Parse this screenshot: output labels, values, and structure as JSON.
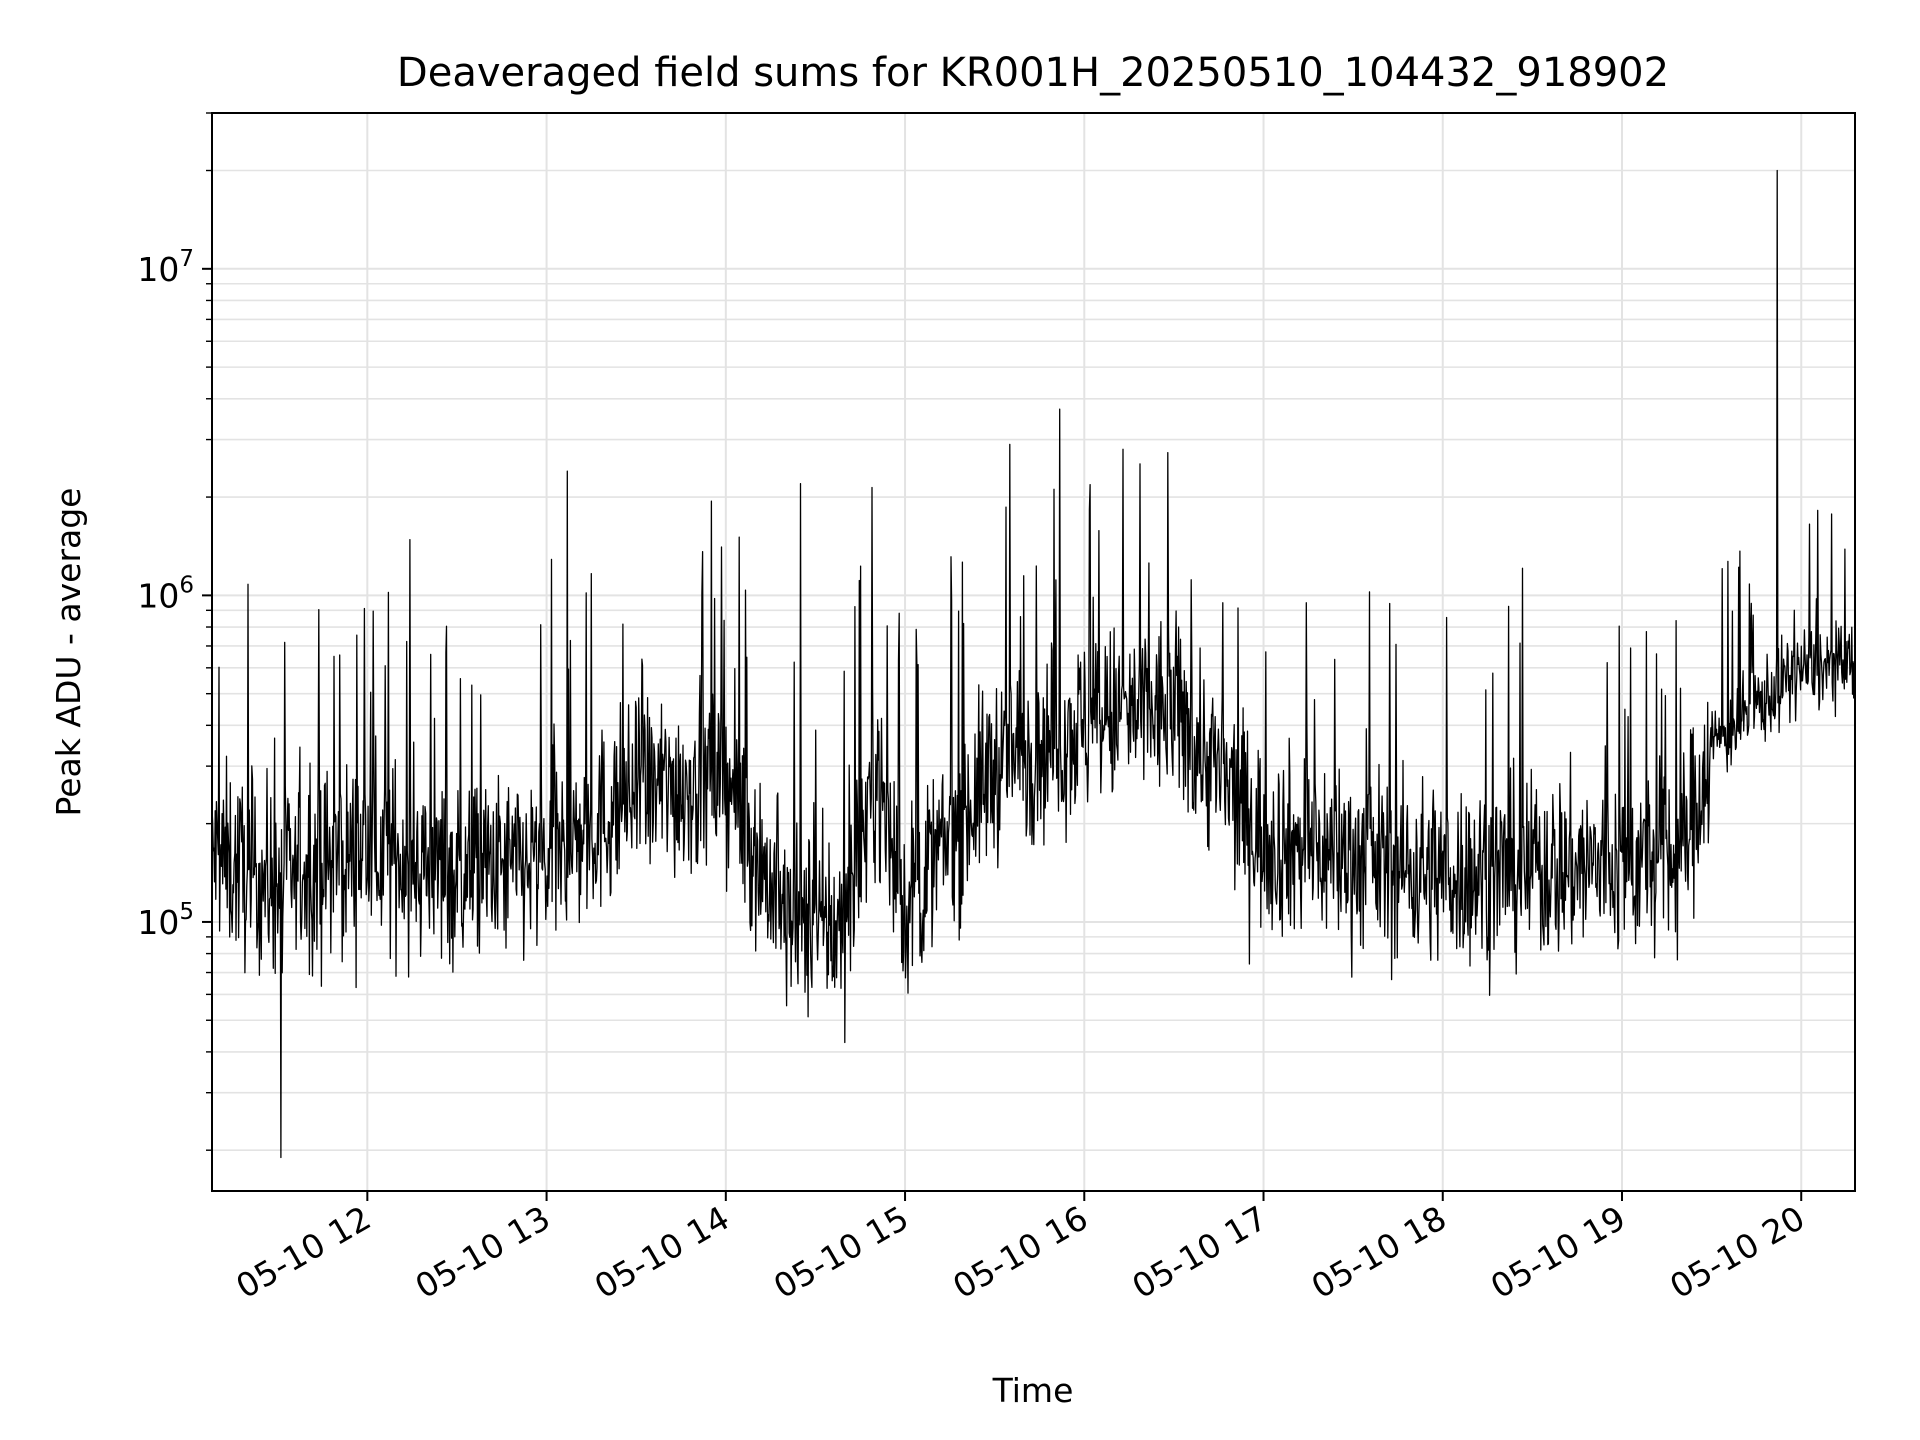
{
  "chart_data": {
    "type": "line",
    "title": "Deaveraged field sums for KR001H_20250510_104432_918902",
    "xlabel": "Time",
    "ylabel": "Peak ADU - average",
    "x_range": [
      "2025-05-10 11:08",
      "2025-05-10 20:18"
    ],
    "x_ticks": [
      {
        "t": "2025-05-10 12:00",
        "label": "05-10 12"
      },
      {
        "t": "2025-05-10 13:00",
        "label": "05-10 13"
      },
      {
        "t": "2025-05-10 14:00",
        "label": "05-10 14"
      },
      {
        "t": "2025-05-10 15:00",
        "label": "05-10 15"
      },
      {
        "t": "2025-05-10 16:00",
        "label": "05-10 16"
      },
      {
        "t": "2025-05-10 17:00",
        "label": "05-10 17"
      },
      {
        "t": "2025-05-10 18:00",
        "label": "05-10 18"
      },
      {
        "t": "2025-05-10 19:00",
        "label": "05-10 19"
      },
      {
        "t": "2025-05-10 20:00",
        "label": "05-10 20"
      }
    ],
    "y_scale": "log",
    "ylim": [
      15000,
      30000000
    ],
    "y_ticks": [
      {
        "v": 100000,
        "base": "10",
        "exp": "5"
      },
      {
        "v": 1000000,
        "base": "10",
        "exp": "6"
      },
      {
        "v": 10000000,
        "base": "10",
        "exp": "7"
      }
    ],
    "grid": true,
    "line_color": "#000000",
    "trend_points": [
      {
        "t": "2025-05-10 11:08",
        "v": 160000
      },
      {
        "t": "2025-05-10 11:30",
        "v": 130000
      },
      {
        "t": "2025-05-10 12:00",
        "v": 170000
      },
      {
        "t": "2025-05-10 12:30",
        "v": 140000
      },
      {
        "t": "2025-05-10 13:00",
        "v": 150000
      },
      {
        "t": "2025-05-10 13:30",
        "v": 250000
      },
      {
        "t": "2025-05-10 14:00",
        "v": 280000
      },
      {
        "t": "2025-05-10 14:20",
        "v": 100000
      },
      {
        "t": "2025-05-10 14:40",
        "v": 95000
      },
      {
        "t": "2025-05-10 14:50",
        "v": 300000
      },
      {
        "t": "2025-05-10 15:00",
        "v": 110000
      },
      {
        "t": "2025-05-10 15:30",
        "v": 300000
      },
      {
        "t": "2025-05-10 16:00",
        "v": 400000
      },
      {
        "t": "2025-05-10 16:30",
        "v": 450000
      },
      {
        "t": "2025-05-10 17:00",
        "v": 180000
      },
      {
        "t": "2025-05-10 18:00",
        "v": 140000
      },
      {
        "t": "2025-05-10 19:00",
        "v": 150000
      },
      {
        "t": "2025-05-10 19:20",
        "v": 160000
      },
      {
        "t": "2025-05-10 19:30",
        "v": 350000
      },
      {
        "t": "2025-05-10 20:00",
        "v": 600000
      },
      {
        "t": "2025-05-10 20:18",
        "v": 600000
      }
    ],
    "notable_points": [
      {
        "t": "2025-05-10 19:52",
        "v": 20000000
      },
      {
        "t": "2025-05-10 15:35",
        "v": 2900000
      },
      {
        "t": "2025-05-10 16:13",
        "v": 2800000
      },
      {
        "t": "2025-05-10 13:07",
        "v": 2400000
      },
      {
        "t": "2025-05-10 14:25",
        "v": 2200000
      },
      {
        "t": "2025-05-10 11:31",
        "v": 19000
      }
    ]
  }
}
